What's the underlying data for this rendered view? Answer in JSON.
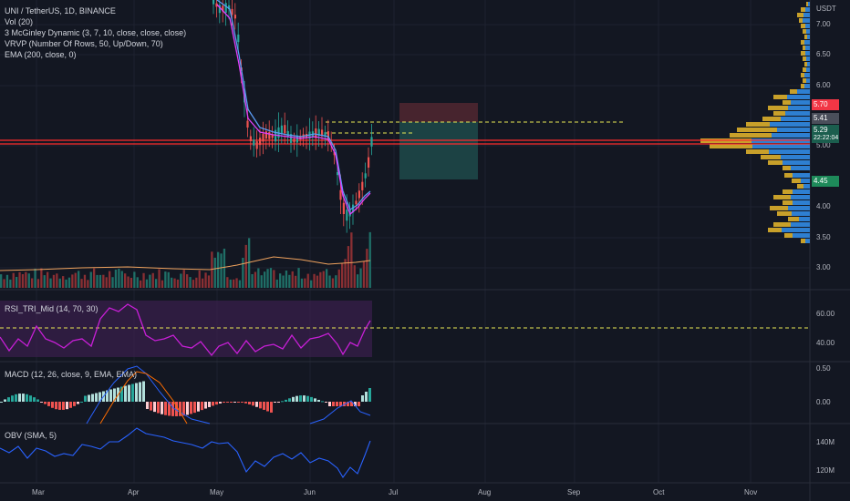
{
  "main_pane": {
    "symbol_line": "UNI / TetherUS, 1D, BINANCE",
    "indicators": [
      "Vol (20)",
      "3 McGinley Dynamic (3, 7, 10, close, close, close)",
      "VRVP (Number Of Rows, 50, Up/Down, 70)",
      "EMA (200, close, 0)"
    ]
  },
  "price_axis": {
    "currency": "USDT",
    "ticks": [
      "7.00",
      "6.50",
      "6.00",
      "5.00",
      "4.00",
      "3.50",
      "3.00"
    ],
    "tag_red": "5.70",
    "tag_gray": "5.41",
    "tag_green_price": "5.29",
    "tag_green_timer": "22:22:04",
    "tag_green2": "4.45"
  },
  "rsi_pane": {
    "label": "RSI_TRI_Mid (14, 70, 30)",
    "ticks": [
      "60.00",
      "40.00"
    ]
  },
  "macd_pane": {
    "label": "MACD (12, 26, close, 9, EMA, EMA)",
    "ticks": [
      "0.50",
      "0.00"
    ]
  },
  "obv_pane": {
    "label": "OBV (SMA, 5)",
    "ticks": [
      "140M",
      "120M"
    ]
  },
  "time_axis": {
    "labels": [
      "Mar",
      "Apr",
      "May",
      "Jun",
      "Jul",
      "Aug",
      "Sep",
      "Oct",
      "Nov"
    ]
  },
  "colors": {
    "background": "#131722",
    "up": "#26a69a",
    "down": "#ef5350",
    "resistance_line": "#ff2d2d",
    "ema": "#f0a35e",
    "mcginley_blue": "#5b9cf6",
    "mcginley_pink": "#e040fb",
    "rsi_line": "#c71fd6",
    "macd_line": "#2962ff",
    "signal_line": "#ff6d00",
    "obv_line": "#2962ff",
    "vrvp_up": "#2e7fd1",
    "vrvp_down": "#c8a02a",
    "dashed_levels": "#e9e954"
  }
}
